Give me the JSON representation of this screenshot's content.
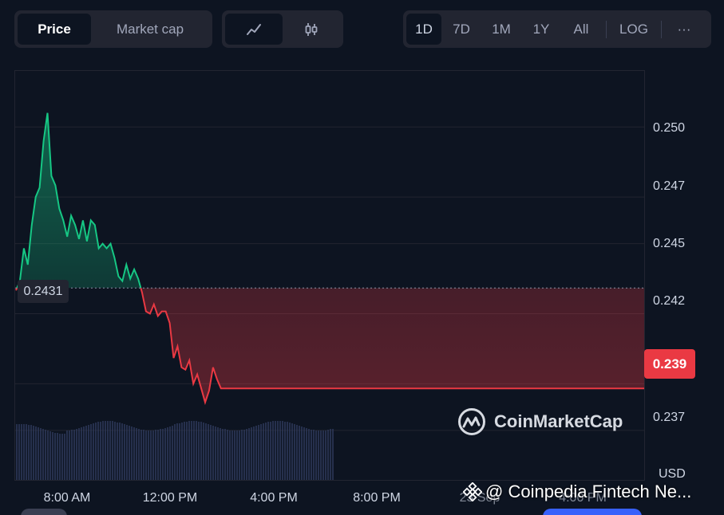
{
  "toolbar": {
    "metric_tabs": [
      {
        "label": "Price",
        "active": true
      },
      {
        "label": "Market cap",
        "active": false
      }
    ],
    "chart_type_icons": [
      {
        "icon": "line-chart-icon",
        "active": true
      },
      {
        "icon": "candlestick-icon",
        "active": false
      }
    ],
    "ranges": [
      {
        "label": "1D",
        "active": true
      },
      {
        "label": "7D",
        "active": false
      },
      {
        "label": "1M",
        "active": false
      },
      {
        "label": "1Y",
        "active": false
      },
      {
        "label": "All",
        "active": false
      }
    ],
    "log_label": "LOG",
    "more_label": "···"
  },
  "colors": {
    "up": "#16c784",
    "down": "#ea3943",
    "background": "#0d1421",
    "panel": "#222531"
  },
  "chart_data": {
    "type": "line",
    "currency": "USD",
    "open_price_label": "0.2431",
    "current_price_label": "0.239",
    "y_ticks": [
      "0.250",
      "0.247",
      "0.245",
      "0.242",
      "0.239",
      "0.237"
    ],
    "x_ticks": [
      "8:00 AM",
      "12:00 PM",
      "4:00 PM",
      "8:00 PM",
      "23 Sep",
      "4:00 PM"
    ],
    "ylim": [
      0.2358,
      0.2524
    ],
    "baseline": 0.2431,
    "x": [
      0,
      0.3,
      0.6,
      0.9,
      1.2,
      1.5,
      1.8,
      2.1,
      2.4,
      2.7,
      3,
      3.3,
      3.6,
      3.9,
      4.2,
      4.5,
      4.8,
      5.1,
      5.4,
      5.7,
      6,
      6.3,
      6.6,
      6.9,
      7.2,
      7.5,
      7.8,
      8.1,
      8.4,
      8.7,
      9,
      9.3,
      9.6,
      9.9,
      10.2,
      10.5,
      10.8,
      11.1,
      11.4,
      11.7,
      12,
      12.3,
      12.6,
      12.9,
      13.2,
      13.5,
      13.8,
      14.1,
      14.4,
      14.7,
      15,
      15.3,
      15.6,
      15.9,
      16.2,
      16.5,
      16.8,
      17.1,
      17.4,
      17.7,
      18,
      18.3,
      18.6,
      18.9,
      19.2,
      19.5,
      19.8,
      20.1,
      20.4,
      20.7,
      21,
      21.3,
      21.6,
      21.9,
      22.2,
      22.5,
      22.8,
      23.1,
      23.4,
      23.7,
      24
    ],
    "y": [
      0.243,
      0.2434,
      0.2448,
      0.2441,
      0.2458,
      0.247,
      0.2474,
      0.2494,
      0.2506,
      0.2479,
      0.2475,
      0.2465,
      0.246,
      0.2453,
      0.2462,
      0.2458,
      0.2452,
      0.246,
      0.2451,
      0.246,
      0.2458,
      0.2448,
      0.245,
      0.2448,
      0.245,
      0.2444,
      0.2436,
      0.2434,
      0.2441,
      0.2435,
      0.2439,
      0.2435,
      0.2429,
      0.2421,
      0.242,
      0.2424,
      0.2419,
      0.2421,
      0.2421,
      0.2416,
      0.2401,
      0.2406,
      0.2397,
      0.2396,
      0.24,
      0.239,
      0.2394,
      0.2388,
      0.2382,
      0.2387,
      0.2397,
      0.2392,
      0.2388,
      0.2388,
      0.2388,
      0.2388,
      0.2388,
      0.2388,
      0.2388,
      0.2388,
      0.2388,
      0.2388,
      0.2388,
      0.2388,
      0.2388,
      0.2388,
      0.2388,
      0.2388,
      0.2388,
      0.2388,
      0.2388,
      0.2388,
      0.2388,
      0.2388,
      0.2388,
      0.2388,
      0.2388,
      0.2388,
      0.2388,
      0.2388,
      0.2388
    ],
    "grid": true,
    "volume_bars": true
  },
  "watermark": {
    "brand": "CoinMarketCap"
  },
  "credit": {
    "text": "@ Coinpedia Fintech Ne..."
  }
}
